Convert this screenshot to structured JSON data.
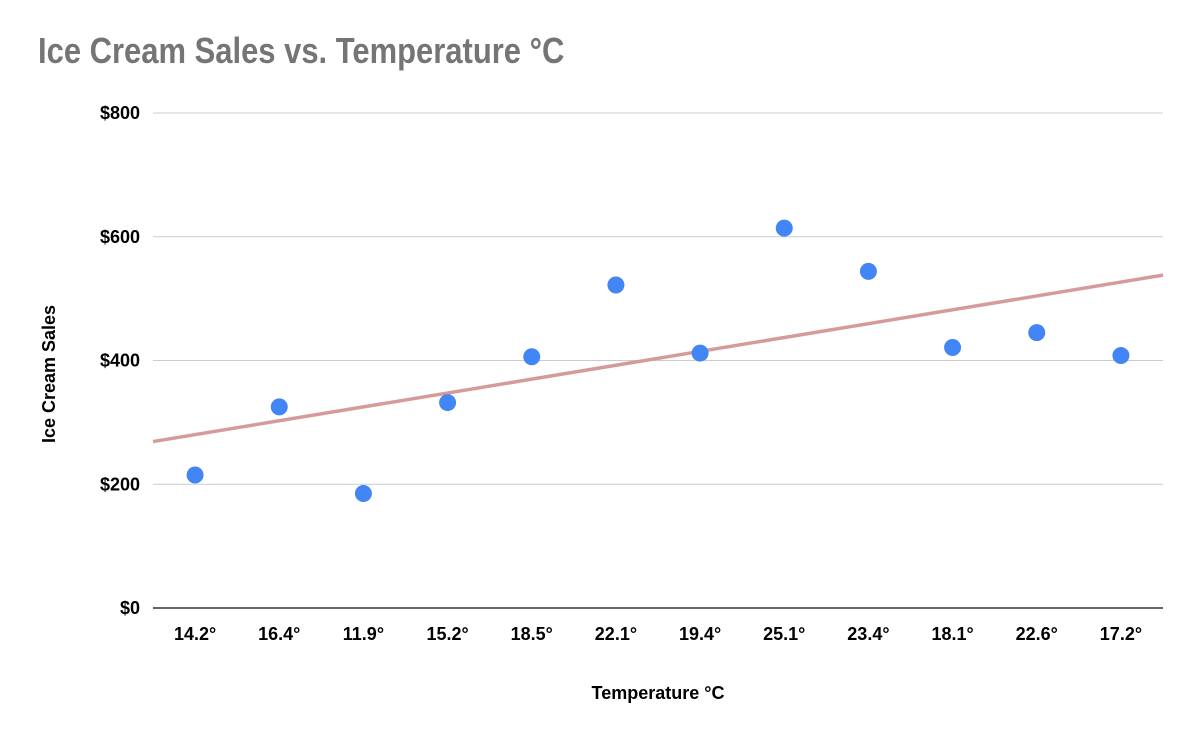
{
  "chart_data": {
    "type": "scatter",
    "title": "Ice Cream Sales vs. Temperature °C",
    "xlabel": "Temperature °C",
    "ylabel": "Ice Cream Sales",
    "categories": [
      "14.2°",
      "16.4°",
      "11.9°",
      "15.2°",
      "18.5°",
      "22.1°",
      "19.4°",
      "25.1°",
      "23.4°",
      "18.1°",
      "22.6°",
      "17.2°"
    ],
    "values": [
      215,
      325,
      185,
      332,
      406,
      522,
      412,
      614,
      544,
      421,
      445,
      408
    ],
    "ylim": [
      0,
      800
    ],
    "yticks": [
      0,
      200,
      400,
      600,
      800
    ],
    "ytick_labels": [
      "$0",
      "$200",
      "$400",
      "$600",
      "$800"
    ],
    "trendline": {
      "type": "linear",
      "start": 269,
      "end": 538
    },
    "grid": true,
    "colors": {
      "points": "#4285f4",
      "trendline": "#d59b9b",
      "grid": "#cccccc",
      "axis": "#333333",
      "title": "#757575"
    }
  }
}
